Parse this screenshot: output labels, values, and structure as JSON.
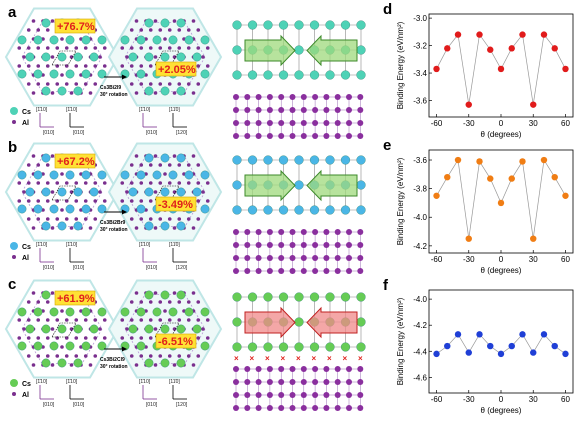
{
  "rows": [
    {
      "id": "a",
      "cs_color": "#4ed2b6",
      "pct_left": "+76.7%",
      "pct_right": "+2.05%",
      "formula": "Cs3Bi2I9",
      "rotation": "30° rotation",
      "legend_cs": "Cs",
      "legend_al": "Al",
      "left_axes": [
        "[1̄10]",
        "[010]"
      ],
      "right_axes": [
        "[1̄10]",
        "[010]"
      ],
      "right_axes2": [
        "[11̄0]",
        "[120]"
      ],
      "arrow_color": "#9fd97c",
      "arrow_stroke": "#3c8a2a",
      "top_atom_color": "#4ed2b6",
      "x_marks": false
    },
    {
      "id": "b",
      "cs_color": "#4ab6e6",
      "pct_left": "+67.2%",
      "pct_right": "-3.49%",
      "formula": "Cs3Bi2Br9",
      "rotation": "30° rotation",
      "legend_cs": "Cs",
      "legend_al": "Al",
      "left_axes": [
        "[1̄10]",
        "[010]"
      ],
      "right_axes": [
        "[1̄10]",
        "[010]"
      ],
      "right_axes2": [
        "[11̄0]",
        "[120]"
      ],
      "arrow_color": "#9fd97c",
      "arrow_stroke": "#3c8a2a",
      "top_atom_color": "#4ab6e6",
      "x_marks": false
    },
    {
      "id": "c",
      "cs_color": "#66cc55",
      "pct_left": "+61.9%",
      "pct_right": "-6.51%",
      "formula": "Cs3Bi2Cl9",
      "rotation": "30° rotation",
      "legend_cs": "Cs",
      "legend_al": "Al",
      "left_axes": [
        "[1̄10]",
        "[010]"
      ],
      "right_axes": [
        "[1̄10]",
        "[010]"
      ],
      "right_axes2": [
        "[11̄0]",
        "[120]"
      ],
      "arrow_color": "#f08a8a",
      "arrow_stroke": "#c02020",
      "top_atom_color": "#66cc55",
      "x_marks": true
    }
  ],
  "chart_data": [
    {
      "panel": "d",
      "type": "scatter",
      "xlabel": "θ (degrees)",
      "ylabel": "Binding Energy (eV/nm²)",
      "xlim": [
        -67,
        67
      ],
      "ylim": [
        -3.72,
        -2.97
      ],
      "xticks": [
        -60,
        -30,
        0,
        30,
        60
      ],
      "yticks": [
        -3.0,
        -3.2,
        -3.4,
        -3.6
      ],
      "ytick_labels": [
        "-3.0",
        "-3.2",
        "-3.4",
        "-3.6"
      ],
      "color": "#e11b1b",
      "x": [
        -60,
        -50,
        -40,
        -30,
        -20,
        -10,
        0,
        10,
        20,
        30,
        40,
        50,
        60
      ],
      "y": [
        -3.37,
        -3.22,
        -3.12,
        -3.63,
        -3.12,
        -3.23,
        -3.37,
        -3.22,
        -3.12,
        -3.63,
        -3.12,
        -3.22,
        -3.37
      ]
    },
    {
      "panel": "e",
      "type": "scatter",
      "xlabel": "θ (degrees)",
      "ylabel": "Binding Energy (eV/nm²)",
      "xlim": [
        -67,
        67
      ],
      "ylim": [
        -4.25,
        -3.53
      ],
      "xticks": [
        -60,
        -30,
        0,
        30,
        60
      ],
      "yticks": [
        -3.6,
        -3.8,
        -4.0,
        -4.2
      ],
      "ytick_labels": [
        "-3.6",
        "-3.8",
        "-4.0",
        "-4.2"
      ],
      "color": "#f07d14",
      "x": [
        -60,
        -50,
        -40,
        -30,
        -20,
        -10,
        0,
        10,
        20,
        30,
        40,
        50,
        60
      ],
      "y": [
        -3.85,
        -3.72,
        -3.6,
        -4.15,
        -3.61,
        -3.73,
        -3.9,
        -3.73,
        -3.61,
        -4.15,
        -3.6,
        -3.72,
        -3.85
      ]
    },
    {
      "panel": "f",
      "type": "scatter",
      "xlabel": "θ (degrees)",
      "ylabel": "Binding Energy (eV/nm²)",
      "xlim": [
        -67,
        67
      ],
      "ylim": [
        -4.72,
        -3.93
      ],
      "xticks": [
        -60,
        -30,
        0,
        30,
        60
      ],
      "yticks": [
        -4.0,
        -4.2,
        -4.4,
        -4.6
      ],
      "ytick_labels": [
        "-4.0",
        "-4.2",
        "-4.4",
        "-4.6"
      ],
      "color": "#1f3fd6",
      "x": [
        -60,
        -50,
        -40,
        -30,
        -20,
        -10,
        0,
        10,
        20,
        30,
        40,
        50,
        60
      ],
      "y": [
        -4.42,
        -4.36,
        -4.27,
        -4.41,
        -4.27,
        -4.36,
        -4.42,
        -4.36,
        -4.27,
        -4.41,
        -4.27,
        -4.36,
        -4.42
      ]
    }
  ]
}
